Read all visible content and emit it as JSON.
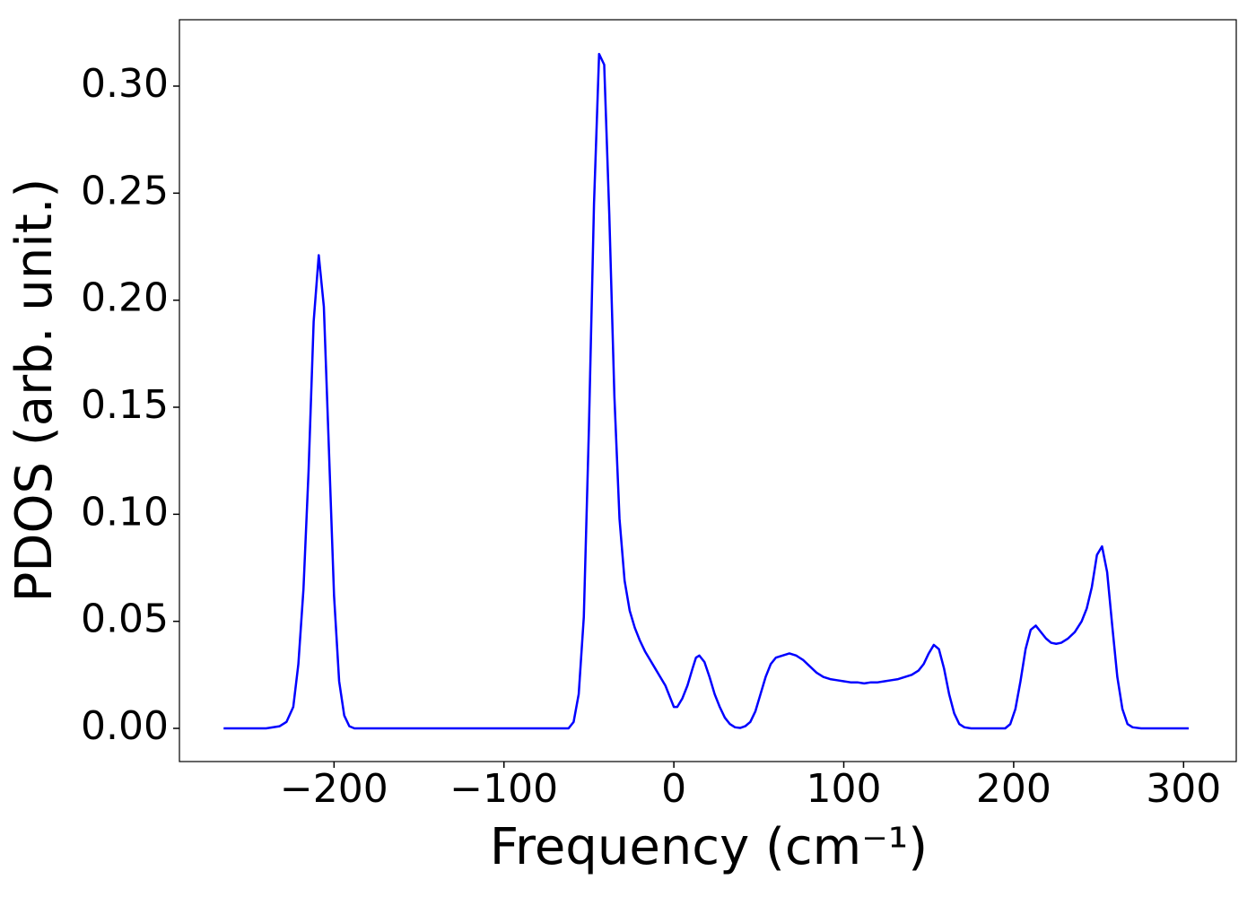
{
  "chart_data": {
    "type": "line",
    "xlabel": "Frequency (cm⁻¹)",
    "ylabel": "PDOS (arb. unit.)",
    "x": [
      -265,
      -240,
      -232,
      -228,
      -224,
      -221,
      -218,
      -215,
      -212,
      -209,
      -206,
      -203,
      -200,
      -197,
      -194,
      -191,
      -188,
      -150,
      -70,
      -62,
      -59,
      -56,
      -53,
      -50,
      -47,
      -44,
      -41,
      -38,
      -35,
      -32,
      -29,
      -26,
      -23,
      -20,
      -17,
      -14,
      -11,
      -8,
      -5,
      -2,
      0,
      2,
      5,
      8,
      11,
      13,
      15,
      18,
      21,
      24,
      27,
      30,
      33,
      36,
      39,
      42,
      45,
      48,
      51,
      54,
      57,
      60,
      64,
      68,
      72,
      76,
      80,
      84,
      88,
      92,
      96,
      100,
      104,
      108,
      112,
      116,
      120,
      124,
      128,
      132,
      136,
      140,
      144,
      147,
      150,
      153,
      156,
      159,
      162,
      165,
      168,
      171,
      175,
      195,
      198,
      201,
      204,
      207,
      210,
      213,
      216,
      219,
      222,
      225,
      228,
      232,
      236,
      240,
      243,
      246,
      249,
      252,
      255,
      258,
      261,
      264,
      267,
      270,
      275,
      303
    ],
    "series": [
      {
        "color": "#0000ff",
        "values": [
          0,
          0,
          0.001,
          0.003,
          0.01,
          0.03,
          0.065,
          0.12,
          0.19,
          0.221,
          0.197,
          0.13,
          0.062,
          0.022,
          0.006,
          0.001,
          0,
          0,
          0,
          0,
          0.003,
          0.016,
          0.052,
          0.14,
          0.245,
          0.315,
          0.31,
          0.24,
          0.155,
          0.098,
          0.069,
          0.055,
          0.047,
          0.041,
          0.036,
          0.032,
          0.028,
          0.024,
          0.02,
          0.014,
          0.01,
          0.01,
          0.014,
          0.02,
          0.028,
          0.033,
          0.034,
          0.031,
          0.024,
          0.016,
          0.01,
          0.005,
          0.002,
          0.0005,
          0.0002,
          0.001,
          0.003,
          0.008,
          0.016,
          0.024,
          0.03,
          0.033,
          0.034,
          0.035,
          0.034,
          0.032,
          0.029,
          0.026,
          0.024,
          0.023,
          0.0225,
          0.022,
          0.0215,
          0.0215,
          0.021,
          0.0215,
          0.0215,
          0.022,
          0.0225,
          0.023,
          0.024,
          0.025,
          0.027,
          0.03,
          0.035,
          0.039,
          0.037,
          0.028,
          0.016,
          0.007,
          0.002,
          0.0005,
          0,
          0,
          0.002,
          0.009,
          0.022,
          0.037,
          0.046,
          0.048,
          0.045,
          0.042,
          0.04,
          0.0395,
          0.04,
          0.042,
          0.045,
          0.05,
          0.056,
          0.066,
          0.081,
          0.085,
          0.073,
          0.048,
          0.024,
          0.009,
          0.002,
          0.0005,
          0,
          0
        ]
      }
    ],
    "xlim": [
      -291,
      331
    ],
    "ylim": [
      -0.0155,
      0.331
    ],
    "xticks": [
      {
        "value": -200,
        "label": "−200"
      },
      {
        "value": -100,
        "label": "−100"
      },
      0,
      100,
      200,
      300
    ],
    "yticks": [
      {
        "value": 0,
        "label": "0.00"
      },
      {
        "value": 0.05,
        "label": "0.05"
      },
      {
        "value": 0.1,
        "label": "0.10"
      },
      {
        "value": 0.15,
        "label": "0.15"
      },
      {
        "value": 0.2,
        "label": "0.20"
      },
      {
        "value": 0.25,
        "label": "0.25"
      },
      {
        "value": 0.3,
        "label": "0.30"
      }
    ]
  }
}
